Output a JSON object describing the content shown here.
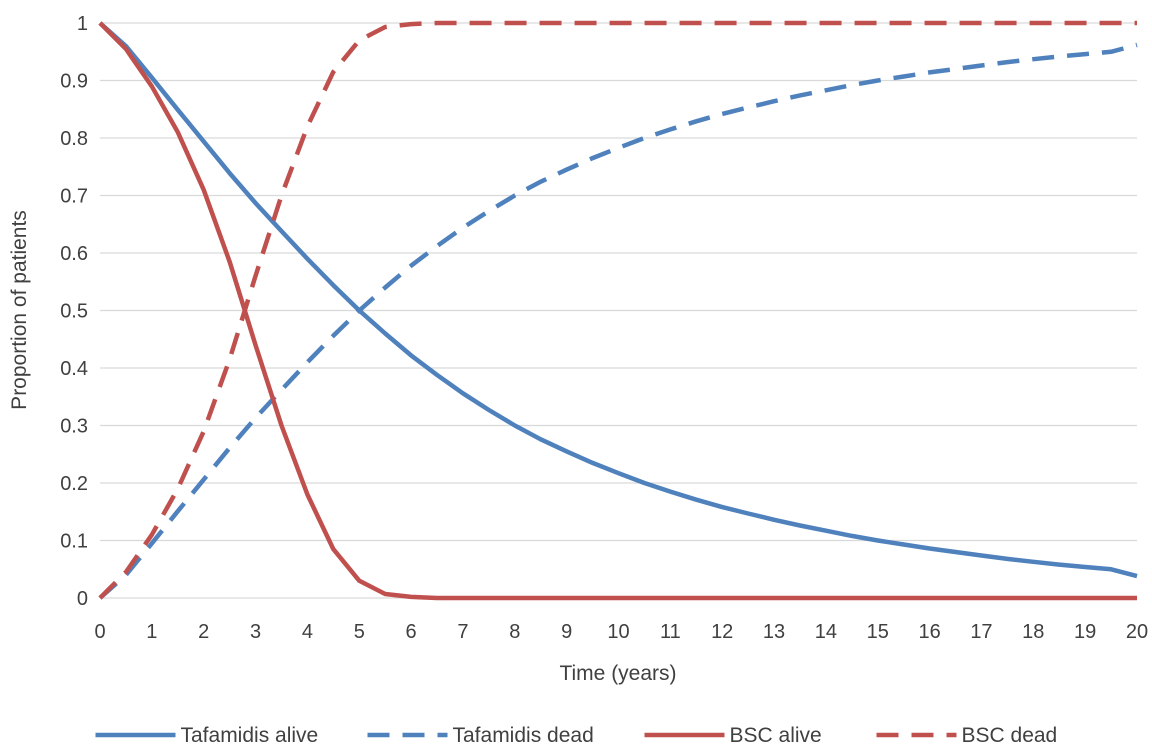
{
  "chart_data": {
    "type": "line",
    "title": "",
    "xlabel": "Time (years)",
    "ylabel": "Proportion of patients",
    "xlim": [
      0,
      20
    ],
    "ylim": [
      0,
      1
    ],
    "x_ticks": [
      "0",
      "1",
      "2",
      "3",
      "4",
      "5",
      "6",
      "7",
      "8",
      "9",
      "10",
      "11",
      "12",
      "13",
      "14",
      "15",
      "16",
      "17",
      "18",
      "19",
      "20"
    ],
    "y_ticks": [
      "0",
      "0.1",
      "0.2",
      "0.3",
      "0.4",
      "0.5",
      "0.6",
      "0.7",
      "0.8",
      "0.9",
      "1"
    ],
    "grid": "horizontal",
    "legend_position": "bottom",
    "x": [
      0,
      0.5,
      1,
      1.5,
      2,
      2.5,
      3,
      3.5,
      4,
      4.5,
      5,
      5.5,
      6,
      6.5,
      7,
      7.5,
      8,
      8.5,
      9,
      9.5,
      10,
      10.5,
      11,
      11.5,
      12,
      12.5,
      13,
      13.5,
      14,
      14.5,
      15,
      15.5,
      16,
      16.5,
      17,
      17.5,
      18,
      18.5,
      19,
      19.5,
      20
    ],
    "series": [
      {
        "name": "Tafamidis alive",
        "color": "#4f81bd",
        "dash": "solid",
        "values": [
          1,
          0.96,
          0.905,
          0.849,
          0.794,
          0.739,
          0.687,
          0.638,
          0.59,
          0.544,
          0.5,
          0.46,
          0.422,
          0.388,
          0.356,
          0.327,
          0.3,
          0.276,
          0.255,
          0.235,
          0.217,
          0.2,
          0.185,
          0.171,
          0.158,
          0.147,
          0.136,
          0.126,
          0.117,
          0.108,
          0.1,
          0.093,
          0.086,
          0.08,
          0.074,
          0.068,
          0.063,
          0.058,
          0.054,
          0.05,
          0.038
        ]
      },
      {
        "name": "Tafamidis dead",
        "color": "#4f81bd",
        "dash": "dashed",
        "values": [
          0,
          0.04,
          0.095,
          0.151,
          0.206,
          0.261,
          0.313,
          0.362,
          0.41,
          0.456,
          0.5,
          0.54,
          0.578,
          0.612,
          0.644,
          0.673,
          0.7,
          0.724,
          0.745,
          0.765,
          0.783,
          0.8,
          0.815,
          0.829,
          0.842,
          0.853,
          0.864,
          0.874,
          0.883,
          0.892,
          0.9,
          0.907,
          0.914,
          0.92,
          0.926,
          0.932,
          0.937,
          0.942,
          0.946,
          0.95,
          0.962
        ]
      },
      {
        "name": "BSC alive",
        "color": "#c0504d",
        "dash": "solid",
        "values": [
          1,
          0.955,
          0.89,
          0.81,
          0.71,
          0.585,
          0.44,
          0.3,
          0.18,
          0.085,
          0.03,
          0.007,
          0.002,
          0,
          0,
          0,
          0,
          0,
          0,
          0,
          0,
          0,
          0,
          0,
          0,
          0,
          0,
          0,
          0,
          0,
          0,
          0,
          0,
          0,
          0,
          0,
          0,
          0,
          0,
          0,
          0
        ]
      },
      {
        "name": "BSC dead",
        "color": "#c0504d",
        "dash": "dashed",
        "values": [
          0,
          0.045,
          0.11,
          0.19,
          0.29,
          0.415,
          0.56,
          0.7,
          0.82,
          0.915,
          0.97,
          0.993,
          0.998,
          1,
          1,
          1,
          1,
          1,
          1,
          1,
          1,
          1,
          1,
          1,
          1,
          1,
          1,
          1,
          1,
          1,
          1,
          1,
          1,
          1,
          1,
          1,
          1,
          1,
          1,
          1,
          1
        ]
      }
    ]
  }
}
